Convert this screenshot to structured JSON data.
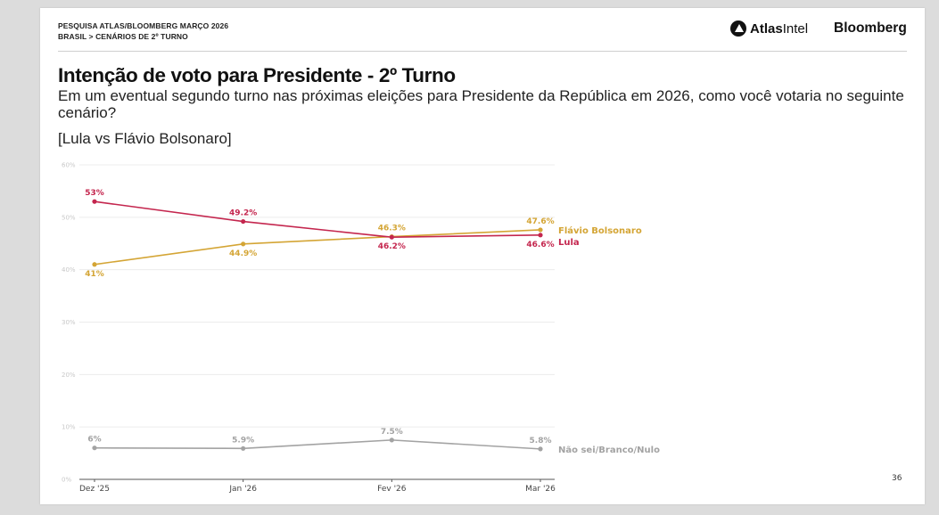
{
  "header": {
    "source_line1": "PESQUISA ATLAS/BLOOMBERG MARÇO 2026",
    "source_line2": "BRASIL > CENÁRIOS DE 2º TURNO",
    "brand_atlas_bold": "Atlas",
    "brand_atlas_light": "Intel",
    "brand_bloomberg": "Bloomberg"
  },
  "title": "Intenção de voto para Presidente - 2º Turno",
  "subtitle": "Em um eventual segundo turno nas próximas eleições para Presidente da República em 2026, como você votaria no seguinte cenário?",
  "scenario": "[Lula vs Flávio Bolsonaro]",
  "page_number": "36",
  "chart_data": {
    "type": "line",
    "categories": [
      "Dez '25",
      "Jan '26",
      "Fev '26",
      "Mar '26"
    ],
    "ylim": [
      0,
      60
    ],
    "yticks": [
      0,
      10,
      20,
      30,
      40,
      50,
      60
    ],
    "ytick_labels": [
      "0%",
      "10%",
      "20%",
      "30%",
      "40%",
      "50%",
      "60%"
    ],
    "grid": true,
    "series": [
      {
        "name": "Flávio Bolsonaro",
        "color": "#d4a535",
        "values": [
          41,
          44.9,
          46.3,
          47.6
        ],
        "labels": [
          "41%",
          "44.9%",
          "46.3%",
          "47.6%"
        ],
        "label_pos": [
          "below",
          "below",
          "above",
          "above"
        ]
      },
      {
        "name": "Lula",
        "color": "#c4264e",
        "values": [
          53,
          49.2,
          46.2,
          46.6
        ],
        "labels": [
          "53%",
          "49.2%",
          "46.2%",
          "46.6%"
        ],
        "label_pos": [
          "above",
          "above",
          "below",
          "below"
        ]
      },
      {
        "name": "Não sei/Branco/Nulo",
        "color": "#a3a3a3",
        "values": [
          6,
          5.9,
          7.5,
          5.8
        ],
        "labels": [
          "6%",
          "5.9%",
          "7.5%",
          "5.8%"
        ],
        "label_pos": [
          "above",
          "above",
          "above",
          "above"
        ]
      }
    ]
  }
}
